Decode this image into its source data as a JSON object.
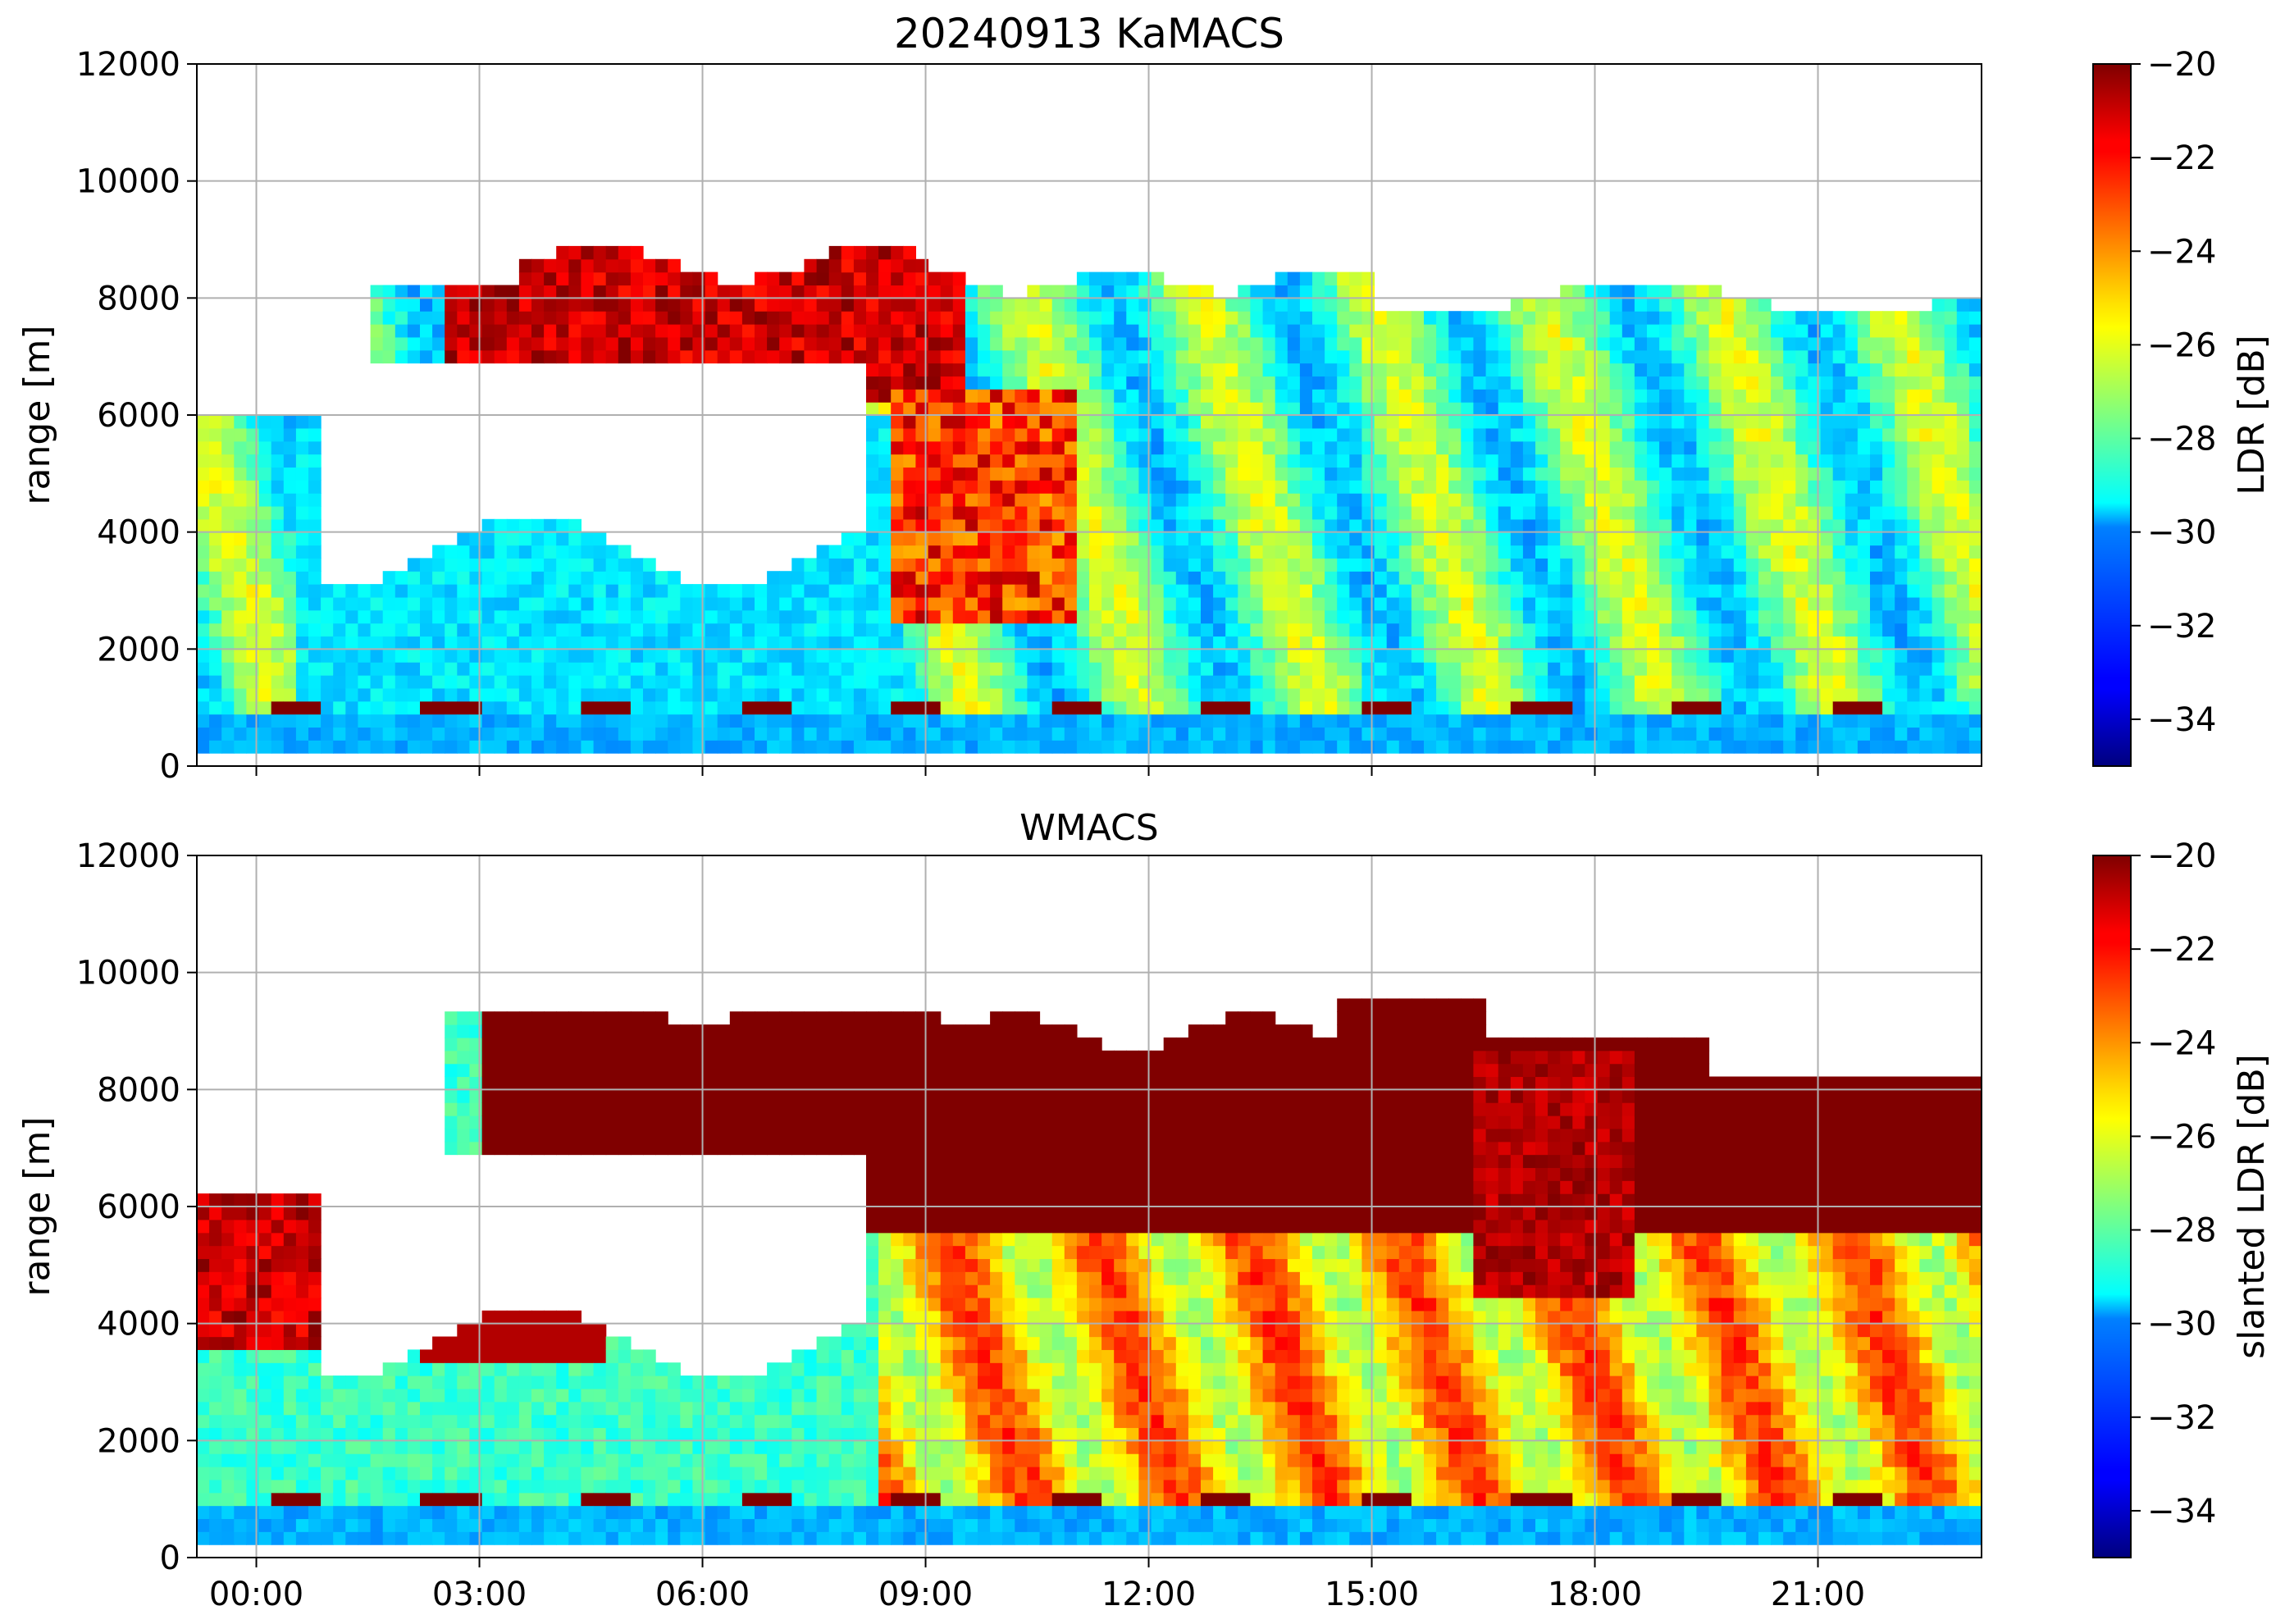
{
  "figure": {
    "suptitle": "20240913 KaMACS"
  },
  "chart_data": [
    {
      "type": "heatmap",
      "title": "",
      "ylabel": "range [m]",
      "xlabel": "",
      "ylim": [
        0,
        12000
      ],
      "xlim_hours": [
        -0.8,
        23.2
      ],
      "grid": true,
      "yticks": [
        0,
        2000,
        4000,
        6000,
        8000,
        10000,
        12000
      ],
      "ytick_labels": [
        "0",
        "2000",
        "4000",
        "6000",
        "8000",
        "10000",
        "12000"
      ],
      "xticks_hours": [
        0,
        3,
        6,
        9,
        12,
        15,
        18,
        21
      ],
      "xtick_labels": [],
      "colorbar": {
        "label": "LDR [dB]",
        "colormap": "jet",
        "range": [
          -35,
          -20
        ],
        "ticks": [
          -34,
          -32,
          -30,
          -28,
          -26,
          -24,
          -22,
          -20
        ],
        "tick_labels": [
          "−34",
          "−32",
          "−30",
          "−28",
          "−26",
          "−24",
          "−22",
          "−20"
        ]
      },
      "features": {
        "surface_bright_band_height_m": 900,
        "cloud_top_approx_m": 8500,
        "max_echo_top_m": 9200,
        "dominant_ldr_dB": -28
      }
    },
    {
      "type": "heatmap",
      "title": "WMACS",
      "ylabel": "range [m]",
      "xlabel": "",
      "ylim": [
        0,
        12000
      ],
      "xlim_hours": [
        -0.8,
        23.2
      ],
      "grid": true,
      "yticks": [
        0,
        2000,
        4000,
        6000,
        8000,
        10000,
        12000
      ],
      "ytick_labels": [
        "0",
        "2000",
        "4000",
        "6000",
        "8000",
        "10000",
        "12000"
      ],
      "xticks_hours": [
        0,
        3,
        6,
        9,
        12,
        15,
        18,
        21
      ],
      "xtick_labels": [
        "00:00",
        "03:00",
        "06:00",
        "09:00",
        "12:00",
        "15:00",
        "18:00",
        "21:00"
      ],
      "colorbar": {
        "label": "slanted LDR [dB]",
        "colormap": "jet",
        "range": [
          -35,
          -20
        ],
        "ticks": [
          -34,
          -32,
          -30,
          -28,
          -26,
          -24,
          -22,
          -20
        ],
        "tick_labels": [
          "−34",
          "−32",
          "−30",
          "−28",
          "−26",
          "−24",
          "−22",
          "−20"
        ]
      },
      "features": {
        "surface_bright_band_height_m": 900,
        "cloud_top_approx_m": 9000,
        "max_echo_top_m": 9600,
        "dominant_ldr_dB": -22
      }
    }
  ]
}
